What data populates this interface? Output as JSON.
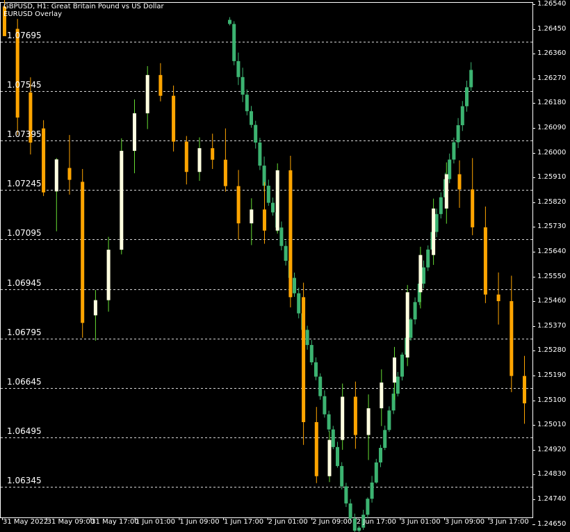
{
  "header": {
    "title": "GBPUSD, H1:  Great Britain Pound vs US Dollar",
    "overlay_name": "EURUSD Overlay"
  },
  "colors": {
    "background": "#000000",
    "foreground": "#ffffff",
    "grid": "#ffffff",
    "gbp_bull": "#3cb371",
    "gbp_bear": "#3cb371",
    "eur_bull": "#ffffe0",
    "eur_bear": "#ffa500",
    "wick_gbp": "#3cb371",
    "wick_eur_up": "#66dd33",
    "wick_eur_down": "#ffa500"
  },
  "chart_data": {
    "type": "candlestick",
    "price_axis": {
      "labels": [
        "1.26540",
        "1.26450",
        "1.26360",
        "1.26270",
        "1.26180",
        "1.26090",
        "1.26000",
        "1.25910",
        "1.25820",
        "1.25730",
        "1.25640",
        "1.25550",
        "1.25460",
        "1.25370",
        "1.25280",
        "1.25190",
        "1.25100",
        "1.25010",
        "1.24920",
        "1.24830",
        "1.24740",
        "1.24650"
      ],
      "range": [
        1.2461,
        1.2656
      ]
    },
    "overlay_axis": {
      "labels": [
        "1.07695",
        "1.07545",
        "1.07395",
        "1.07245",
        "1.07095",
        "1.06945",
        "1.06795",
        "1.06645",
        "1.06495",
        "1.06345"
      ],
      "range": [
        1.06245,
        1.07905
      ]
    },
    "time_axis": {
      "labels": [
        "31 May 2022",
        "31 May 09:00",
        "31 May 17:00",
        "1 Jun 01:00",
        "1 Jun 09:00",
        "1 Jun 17:00",
        "2 Jun 01:00",
        "2 Jun 09:00",
        "2 Jun 17:00",
        "3 Jun 01:00",
        "3 Jun 09:00",
        "3 Jun 17:00"
      ]
    },
    "grid": "horizontal dashed at overlay levels",
    "series": [
      {
        "name": "GBPUSD",
        "ohlc": [
          [
            1.26483,
            1.26493,
            1.26463,
            1.26468
          ],
          [
            1.26468,
            1.26478,
            1.26318,
            1.26333
          ],
          [
            1.26333,
            1.26364,
            1.26246,
            1.26275
          ],
          [
            1.26275,
            1.26309,
            1.26184,
            1.26211
          ],
          [
            1.26211,
            1.2623,
            1.26136,
            1.26151
          ],
          [
            1.26151,
            1.2617,
            1.26091,
            1.26101
          ],
          [
            1.26101,
            1.26116,
            1.26015,
            1.26037
          ],
          [
            1.26037,
            1.26054,
            1.25937,
            1.25953
          ],
          [
            1.25953,
            1.25986,
            1.25858,
            1.2588
          ],
          [
            1.2588,
            1.25902,
            1.25807,
            1.25818
          ],
          [
            1.25818,
            1.25837,
            1.25771,
            1.25783
          ],
          [
            1.25783,
            1.25803,
            1.25713,
            1.25728
          ],
          [
            1.25728,
            1.2575,
            1.25645,
            1.25661
          ],
          [
            1.25661,
            1.2568,
            1.2559,
            1.25607
          ],
          [
            1.25607,
            1.25618,
            1.2553,
            1.25545
          ],
          [
            1.25545,
            1.25564,
            1.25476,
            1.25489
          ],
          [
            1.25489,
            1.25509,
            1.25398,
            1.25416
          ],
          [
            1.25416,
            1.25433,
            1.25341,
            1.25356
          ],
          [
            1.25356,
            1.25371,
            1.25284,
            1.25301
          ],
          [
            1.25301,
            1.25319,
            1.25228,
            1.25238
          ],
          [
            1.25238,
            1.25256,
            1.25173,
            1.25186
          ],
          [
            1.25186,
            1.25198,
            1.25102,
            1.25115
          ],
          [
            1.25115,
            1.25136,
            1.25037,
            1.25049
          ],
          [
            1.25049,
            1.25062,
            1.24985,
            1.24994
          ],
          [
            1.24994,
            1.25007,
            1.24922,
            1.2493
          ],
          [
            1.2493,
            1.24949,
            1.24855,
            1.24861
          ],
          [
            1.24861,
            1.24875,
            1.24776,
            1.24787
          ],
          [
            1.24787,
            1.248,
            1.24712,
            1.24725
          ],
          [
            1.24725,
            1.24741,
            1.2466,
            1.2467
          ],
          [
            1.2467,
            1.24688,
            1.24617,
            1.24626
          ],
          [
            1.24626,
            1.24643,
            1.24621,
            1.24637
          ],
          [
            1.24637,
            1.24702,
            1.24629,
            1.24684
          ],
          [
            1.24684,
            1.24747,
            1.24671,
            1.24742
          ],
          [
            1.24742,
            1.24825,
            1.24728,
            1.24801
          ],
          [
            1.24801,
            1.24887,
            1.24797,
            1.24874
          ],
          [
            1.24874,
            1.24938,
            1.24857,
            1.24927
          ],
          [
            1.24927,
            1.25008,
            1.24919,
            1.24992
          ],
          [
            1.24992,
            1.25078,
            1.24985,
            1.25063
          ],
          [
            1.25063,
            1.25145,
            1.2505,
            1.25124
          ],
          [
            1.25124,
            1.25203,
            1.25114,
            1.25186
          ],
          [
            1.25186,
            1.25274,
            1.25172,
            1.25266
          ],
          [
            1.25266,
            1.25342,
            1.25257,
            1.25327
          ],
          [
            1.25327,
            1.254,
            1.25316,
            1.25394
          ],
          [
            1.25394,
            1.25474,
            1.25376,
            1.25457
          ],
          [
            1.25457,
            1.25543,
            1.25446,
            1.25524
          ],
          [
            1.25524,
            1.25608,
            1.25507,
            1.25583
          ],
          [
            1.25583,
            1.25663,
            1.2557,
            1.25648
          ],
          [
            1.25648,
            1.2573,
            1.2564,
            1.25712
          ],
          [
            1.25712,
            1.25797,
            1.25693,
            1.25777
          ],
          [
            1.25777,
            1.25856,
            1.25761,
            1.25838
          ],
          [
            1.25838,
            1.25927,
            1.25819,
            1.25904
          ],
          [
            1.25904,
            1.25997,
            1.25889,
            1.25975
          ],
          [
            1.25975,
            1.26055,
            1.25961,
            1.26038
          ],
          [
            1.26038,
            1.26126,
            1.26017,
            1.261
          ],
          [
            1.261,
            1.26188,
            1.26079,
            1.26169
          ],
          [
            1.26169,
            1.26262,
            1.26149,
            1.26238
          ],
          [
            1.26238,
            1.26329,
            1.26225,
            1.26301
          ]
        ]
      },
      {
        "name": "EURUSD",
        "ohlc": [
          [
            1.07802,
            1.07892,
            1.07725,
            1.07712
          ],
          [
            1.07734,
            1.07764,
            1.07412,
            1.07465
          ],
          [
            1.07541,
            1.07587,
            1.07353,
            1.07389
          ],
          [
            1.07432,
            1.07457,
            1.07227,
            1.07238
          ],
          [
            1.07241,
            1.07342,
            1.0712,
            1.07338
          ],
          [
            1.07312,
            1.07412,
            1.07231,
            1.07276
          ],
          [
            1.0727,
            1.07309,
            1.06797,
            1.06842
          ],
          [
            1.06865,
            1.06942,
            1.06788,
            1.06911
          ],
          [
            1.06911,
            1.07103,
            1.06876,
            1.07064
          ],
          [
            1.07064,
            1.07402,
            1.0705,
            1.07364
          ],
          [
            1.07364,
            1.0752,
            1.07296,
            1.07478
          ],
          [
            1.07478,
            1.07621,
            1.0743,
            1.07594
          ],
          [
            1.07594,
            1.0763,
            1.07514,
            1.07531
          ],
          [
            1.07531,
            1.07562,
            1.07362,
            1.07392
          ],
          [
            1.07392,
            1.07409,
            1.07262,
            1.073
          ],
          [
            1.073,
            1.07405,
            1.07273,
            1.07372
          ],
          [
            1.07372,
            1.07416,
            1.07309,
            1.07337
          ],
          [
            1.07337,
            1.07432,
            1.0724,
            1.07257
          ],
          [
            1.07257,
            1.07306,
            1.07094,
            1.07144
          ],
          [
            1.07144,
            1.0722,
            1.07078,
            1.07186
          ],
          [
            1.07186,
            1.07269,
            1.07082,
            1.07122
          ],
          [
            1.07122,
            1.07326,
            1.07113,
            1.07305
          ],
          [
            1.07305,
            1.07349,
            1.06889,
            1.0692
          ],
          [
            1.0692,
            1.06964,
            1.06472,
            1.06541
          ],
          [
            1.06541,
            1.06587,
            1.06356,
            1.06377
          ],
          [
            1.06377,
            1.06513,
            1.06359,
            1.06487
          ],
          [
            1.06487,
            1.06658,
            1.06457,
            1.06618
          ],
          [
            1.06618,
            1.06664,
            1.0646,
            1.06502
          ],
          [
            1.06502,
            1.06625,
            1.06426,
            1.06583
          ],
          [
            1.06583,
            1.06701,
            1.06529,
            1.06661
          ],
          [
            1.06661,
            1.06769,
            1.06608,
            1.06737
          ],
          [
            1.06737,
            1.06957,
            1.06711,
            1.06935
          ],
          [
            1.06935,
            1.07073,
            1.06886,
            1.07048
          ],
          [
            1.07048,
            1.07219,
            1.07018,
            1.07189
          ],
          [
            1.07189,
            1.07329,
            1.07143,
            1.07293
          ],
          [
            1.07293,
            1.07335,
            1.07191,
            1.07247
          ],
          [
            1.07247,
            1.07342,
            1.07108,
            1.07132
          ],
          [
            1.07132,
            1.07195,
            1.06902,
            1.06928
          ],
          [
            1.06928,
            1.06995,
            1.06837,
            1.06908
          ],
          [
            1.06908,
            1.06985,
            1.06632,
            1.06681
          ],
          [
            1.06681,
            1.06742,
            1.06536,
            1.06598
          ]
        ]
      }
    ]
  }
}
